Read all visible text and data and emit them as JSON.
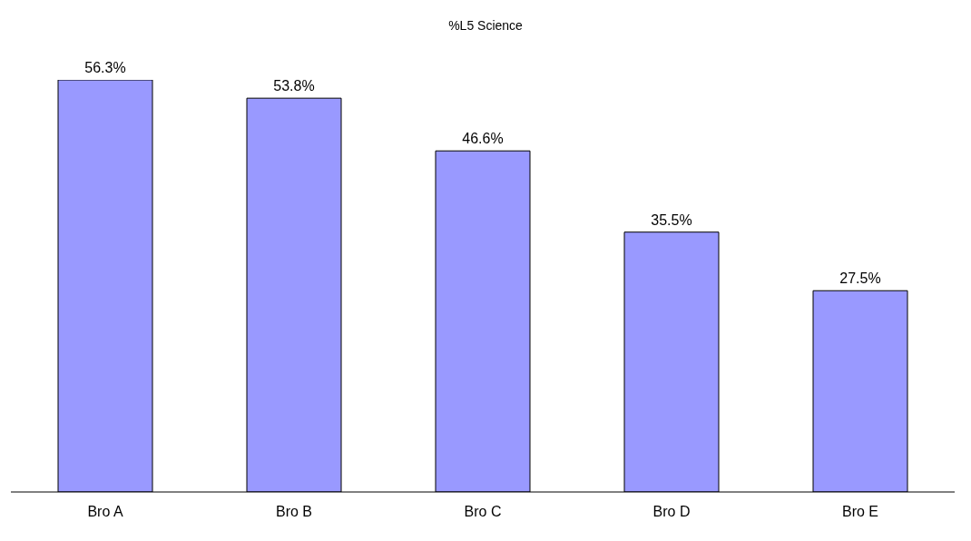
{
  "chart_data": {
    "type": "bar",
    "title": "%L5 Science",
    "categories": [
      "Bro A",
      "Bro B",
      "Bro C",
      "Bro D",
      "Bro E"
    ],
    "values": [
      56.3,
      53.8,
      46.6,
      35.5,
      27.5
    ],
    "value_labels": [
      "56.3%",
      "53.8%",
      "46.6%",
      "35.5%",
      "27.5%"
    ],
    "color": "#9999ff"
  }
}
